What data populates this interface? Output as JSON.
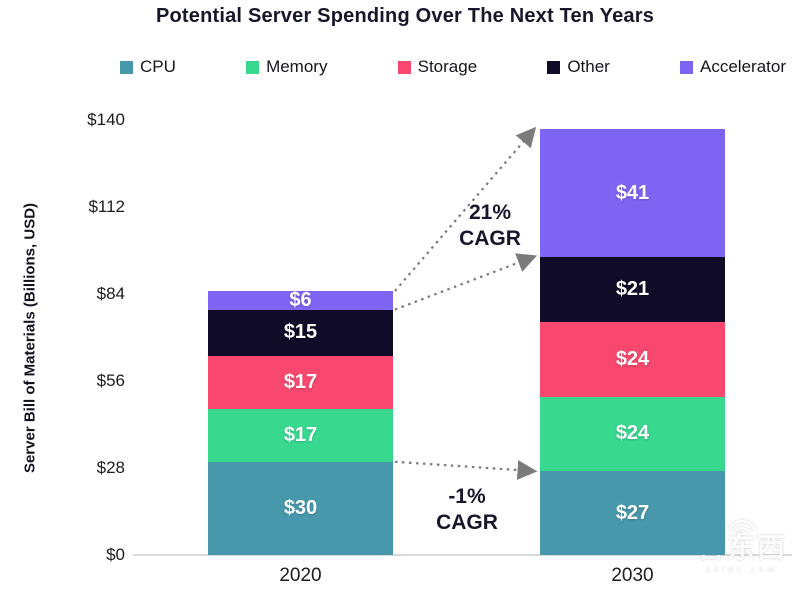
{
  "title": "Potential Server Spending Over The Next Ten Years",
  "watermark": {
    "brand": "智东西",
    "domain": "zhidx.com"
  },
  "chart_data": {
    "type": "bar",
    "stacked": true,
    "title": "Potential Server Spending Over The Next Ten Years",
    "xlabel": "",
    "ylabel": "Server Bill of Materials (Billions, USD)",
    "ylim": [
      0,
      140
    ],
    "yticks": [
      0,
      28,
      56,
      84,
      112,
      140
    ],
    "ytick_labels": [
      "$0",
      "$28",
      "$56",
      "$84",
      "$112",
      "$140"
    ],
    "categories": [
      "2020",
      "2030"
    ],
    "series": [
      {
        "name": "CPU",
        "color": "#4898AB",
        "values": [
          30,
          27
        ],
        "labels": [
          "$30",
          "$27"
        ]
      },
      {
        "name": "Memory",
        "color": "#38D88F",
        "values": [
          17,
          24
        ],
        "labels": [
          "$17",
          "$24"
        ]
      },
      {
        "name": "Storage",
        "color": "#F8486F",
        "values": [
          17,
          24
        ],
        "labels": [
          "$17",
          "$24"
        ]
      },
      {
        "name": "Other",
        "color": "#100C28",
        "values": [
          15,
          21
        ],
        "labels": [
          "$15",
          "$21"
        ]
      },
      {
        "name": "Accelerator",
        "color": "#7D64F2",
        "values": [
          6,
          41
        ],
        "labels": [
          "$6",
          "$41"
        ]
      }
    ],
    "totals": [
      85,
      137
    ],
    "grid": false,
    "legend_position": "top",
    "annotations": [
      {
        "name": "cagr-top",
        "line1": "21%",
        "line2": "CAGR"
      },
      {
        "name": "cagr-bottom",
        "line1": "-1%",
        "line2": "CAGR"
      }
    ],
    "arrows": [
      {
        "from_value": 85,
        "to_value": 137
      },
      {
        "from_value": 79,
        "to_value": 96
      },
      {
        "from_value": 30,
        "to_value": 27
      }
    ],
    "arrow_color": "#7b7b7b",
    "axis_line_color": "#d9d9d9"
  }
}
